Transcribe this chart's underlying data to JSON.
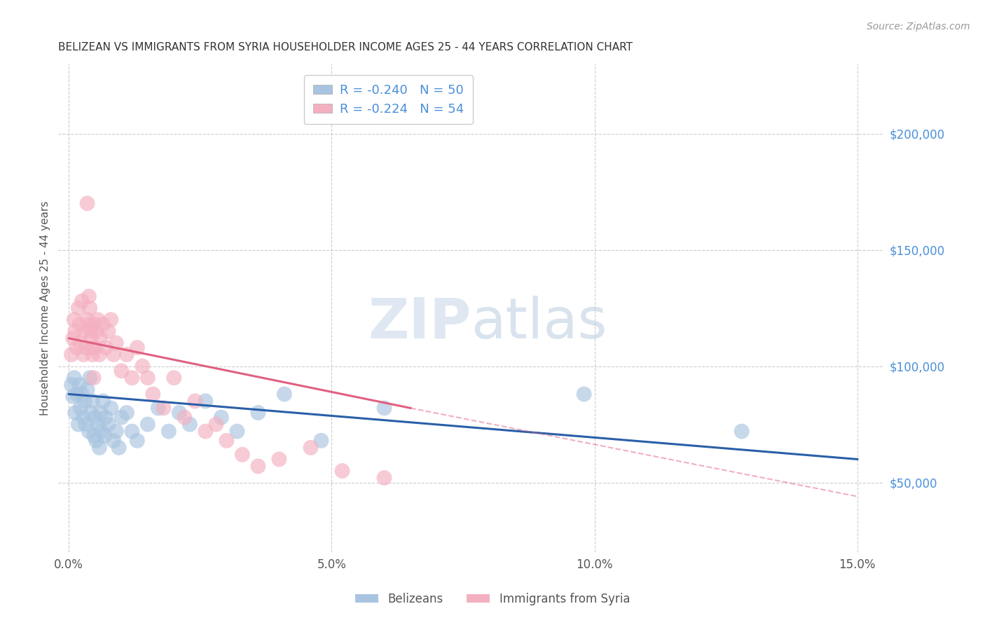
{
  "title": "BELIZEAN VS IMMIGRANTS FROM SYRIA HOUSEHOLDER INCOME AGES 25 - 44 YEARS CORRELATION CHART",
  "source": "Source: ZipAtlas.com",
  "ylabel": "Householder Income Ages 25 - 44 years",
  "xlabel_vals": [
    0.0,
    5.0,
    10.0,
    15.0
  ],
  "ylabel_vals": [
    50000,
    100000,
    150000,
    200000
  ],
  "xlim": [
    -0.2,
    15.5
  ],
  "ylim": [
    20000,
    230000
  ],
  "blue_R": -0.24,
  "blue_N": 50,
  "pink_R": -0.224,
  "pink_N": 54,
  "blue_color": "#a8c4e0",
  "blue_line_color": "#2a5fa8",
  "pink_color": "#f4b0c0",
  "pink_line_color": "#e06080",
  "legend_label_blue": "Belizeans",
  "legend_label_pink": "Immigrants from Syria",
  "blue_scatter_x": [
    0.05,
    0.08,
    0.1,
    0.12,
    0.15,
    0.18,
    0.2,
    0.22,
    0.25,
    0.28,
    0.3,
    0.32,
    0.35,
    0.38,
    0.4,
    0.42,
    0.45,
    0.48,
    0.5,
    0.52,
    0.55,
    0.58,
    0.6,
    0.62,
    0.65,
    0.68,
    0.7,
    0.75,
    0.8,
    0.85,
    0.9,
    0.95,
    1.0,
    1.1,
    1.2,
    1.3,
    1.5,
    1.7,
    1.9,
    2.1,
    2.3,
    2.6,
    2.9,
    3.2,
    3.6,
    4.1,
    4.8,
    6.0,
    9.8,
    12.8
  ],
  "blue_scatter_y": [
    92000,
    87000,
    95000,
    80000,
    88000,
    75000,
    92000,
    82000,
    88000,
    78000,
    85000,
    75000,
    90000,
    72000,
    95000,
    80000,
    85000,
    70000,
    78000,
    68000,
    75000,
    65000,
    80000,
    72000,
    85000,
    70000,
    78000,
    75000,
    82000,
    68000,
    72000,
    65000,
    78000,
    80000,
    72000,
    68000,
    75000,
    82000,
    72000,
    80000,
    75000,
    85000,
    78000,
    72000,
    80000,
    88000,
    68000,
    82000,
    88000,
    72000
  ],
  "pink_scatter_x": [
    0.05,
    0.08,
    0.1,
    0.12,
    0.15,
    0.18,
    0.2,
    0.22,
    0.25,
    0.28,
    0.3,
    0.32,
    0.35,
    0.38,
    0.4,
    0.42,
    0.45,
    0.48,
    0.5,
    0.52,
    0.55,
    0.58,
    0.6,
    0.65,
    0.7,
    0.75,
    0.8,
    0.85,
    0.9,
    1.0,
    1.1,
    1.2,
    1.3,
    1.4,
    1.5,
    1.6,
    1.8,
    2.0,
    2.2,
    2.4,
    2.6,
    2.8,
    3.0,
    3.3,
    3.6,
    4.0,
    4.6,
    5.2,
    6.0,
    0.35,
    0.38,
    0.41,
    0.44,
    0.47
  ],
  "pink_scatter_y": [
    105000,
    112000,
    120000,
    115000,
    108000,
    125000,
    118000,
    110000,
    128000,
    105000,
    115000,
    108000,
    120000,
    118000,
    125000,
    112000,
    105000,
    118000,
    108000,
    115000,
    120000,
    105000,
    112000,
    118000,
    108000,
    115000,
    120000,
    105000,
    110000,
    98000,
    105000,
    95000,
    108000,
    100000,
    95000,
    88000,
    82000,
    95000,
    78000,
    85000,
    72000,
    75000,
    68000,
    62000,
    57000,
    60000,
    65000,
    55000,
    52000,
    170000,
    130000,
    115000,
    108000,
    95000
  ],
  "blue_line_x0": 0.0,
  "blue_line_x1": 15.0,
  "blue_line_y0": 88000,
  "blue_line_y1": 60000,
  "pink_line_x0": 0.0,
  "pink_line_x1": 6.5,
  "pink_line_y0": 112000,
  "pink_line_y1": 82000,
  "pink_dash_x0": 6.5,
  "pink_dash_x1": 15.0,
  "pink_dash_y0": 82000,
  "pink_dash_y1": 44000,
  "background_color": "#ffffff",
  "grid_color": "#cccccc",
  "title_color": "#333333",
  "axis_label_color": "#555555",
  "right_tick_color": "#4a90d9",
  "source_color": "#999999",
  "watermark_zip_color": "#c5d5e8",
  "watermark_atlas_color": "#b8cce0",
  "watermark_alpha": 0.55
}
